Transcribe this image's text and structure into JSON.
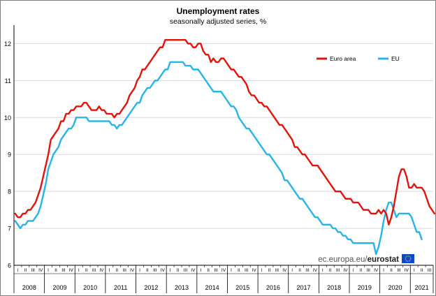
{
  "chart_data": {
    "type": "line",
    "title": "Unemployment rates",
    "subtitle": "seasonally adjusted series, %",
    "ylim": [
      6,
      12.5
    ],
    "yticks": [
      6,
      7,
      8,
      9,
      10,
      11,
      12
    ],
    "grid": true,
    "legend_placement": "top-right",
    "x_start": "2008-01",
    "years": [
      "2008",
      "2009",
      "2010",
      "2011",
      "2012",
      "2013",
      "2014",
      "2015",
      "2016",
      "2017",
      "2018",
      "2019",
      "2020",
      "2021"
    ],
    "quarter_labels": [
      "I",
      "II",
      "III",
      "IV"
    ],
    "last_year_quarters": 3,
    "series": [
      {
        "name": "Euro area",
        "color": "#e3120b",
        "values": [
          7.4,
          7.3,
          7.3,
          7.4,
          7.4,
          7.5,
          7.5,
          7.6,
          7.7,
          7.9,
          8.1,
          8.4,
          8.7,
          9.0,
          9.4,
          9.5,
          9.6,
          9.7,
          9.9,
          9.9,
          10.1,
          10.1,
          10.2,
          10.2,
          10.3,
          10.3,
          10.3,
          10.4,
          10.4,
          10.3,
          10.2,
          10.2,
          10.2,
          10.3,
          10.2,
          10.2,
          10.1,
          10.1,
          10.1,
          10.0,
          10.1,
          10.1,
          10.2,
          10.3,
          10.4,
          10.6,
          10.7,
          10.8,
          11.0,
          11.1,
          11.3,
          11.3,
          11.4,
          11.5,
          11.6,
          11.7,
          11.8,
          11.9,
          11.9,
          12.1,
          12.1,
          12.1,
          12.1,
          12.1,
          12.1,
          12.1,
          12.1,
          12.1,
          12.0,
          12.0,
          11.9,
          11.9,
          12.0,
          12.0,
          11.8,
          11.7,
          11.7,
          11.5,
          11.6,
          11.5,
          11.5,
          11.6,
          11.6,
          11.5,
          11.4,
          11.3,
          11.3,
          11.2,
          11.1,
          11.1,
          11.0,
          10.9,
          10.7,
          10.6,
          10.6,
          10.5,
          10.4,
          10.4,
          10.3,
          10.3,
          10.2,
          10.1,
          10.0,
          9.9,
          9.8,
          9.8,
          9.7,
          9.6,
          9.5,
          9.4,
          9.2,
          9.2,
          9.1,
          9.0,
          9.0,
          8.9,
          8.8,
          8.7,
          8.7,
          8.7,
          8.6,
          8.5,
          8.4,
          8.3,
          8.2,
          8.1,
          8.0,
          8.0,
          8.0,
          7.9,
          7.8,
          7.8,
          7.8,
          7.7,
          7.7,
          7.7,
          7.6,
          7.5,
          7.5,
          7.5,
          7.4,
          7.4,
          7.4,
          7.5,
          7.4,
          7.5,
          7.4,
          7.1,
          7.3,
          7.6,
          8.0,
          8.4,
          8.6,
          8.6,
          8.4,
          8.1,
          8.1,
          8.2,
          8.1,
          8.1,
          8.1,
          8.0,
          7.8,
          7.6,
          7.5,
          7.4
        ]
      },
      {
        "name": "EU",
        "color": "#27b4e8",
        "values": [
          7.2,
          7.1,
          7.0,
          7.1,
          7.1,
          7.2,
          7.2,
          7.2,
          7.3,
          7.4,
          7.6,
          7.9,
          8.2,
          8.6,
          8.8,
          9.0,
          9.1,
          9.2,
          9.4,
          9.5,
          9.6,
          9.7,
          9.7,
          9.8,
          10.0,
          10.0,
          10.0,
          10.0,
          10.0,
          9.9,
          9.9,
          9.9,
          9.9,
          9.9,
          9.9,
          9.9,
          9.9,
          9.9,
          9.8,
          9.8,
          9.7,
          9.8,
          9.8,
          9.9,
          10.0,
          10.1,
          10.2,
          10.3,
          10.4,
          10.4,
          10.6,
          10.7,
          10.8,
          10.8,
          10.9,
          11.0,
          11.0,
          11.1,
          11.2,
          11.3,
          11.3,
          11.5,
          11.5,
          11.5,
          11.5,
          11.5,
          11.5,
          11.4,
          11.4,
          11.4,
          11.3,
          11.3,
          11.3,
          11.2,
          11.1,
          11.0,
          10.9,
          10.8,
          10.7,
          10.7,
          10.7,
          10.7,
          10.6,
          10.5,
          10.4,
          10.3,
          10.3,
          10.2,
          10.0,
          9.9,
          9.8,
          9.7,
          9.7,
          9.6,
          9.5,
          9.4,
          9.3,
          9.2,
          9.1,
          9.0,
          9.0,
          8.9,
          8.8,
          8.7,
          8.6,
          8.5,
          8.3,
          8.3,
          8.2,
          8.1,
          8.0,
          7.9,
          7.8,
          7.8,
          7.7,
          7.6,
          7.5,
          7.4,
          7.3,
          7.3,
          7.2,
          7.1,
          7.1,
          7.1,
          7.1,
          7.0,
          7.0,
          6.9,
          6.9,
          6.8,
          6.8,
          6.7,
          6.7,
          6.6,
          6.6,
          6.6,
          6.6,
          6.6,
          6.6,
          6.6,
          6.6,
          6.6,
          6.3,
          6.5,
          6.8,
          7.2,
          7.5,
          7.7,
          7.7,
          7.5,
          7.3,
          7.4,
          7.4,
          7.4,
          7.4,
          7.4,
          7.3,
          7.1,
          6.9,
          6.9,
          6.7
        ]
      }
    ]
  },
  "footer": {
    "source_prefix": "ec.europa.eu/",
    "source_brand": "eurostat"
  },
  "colors": {
    "flag_blue": "#0e47cb",
    "flag_stars": "#ffd617"
  }
}
